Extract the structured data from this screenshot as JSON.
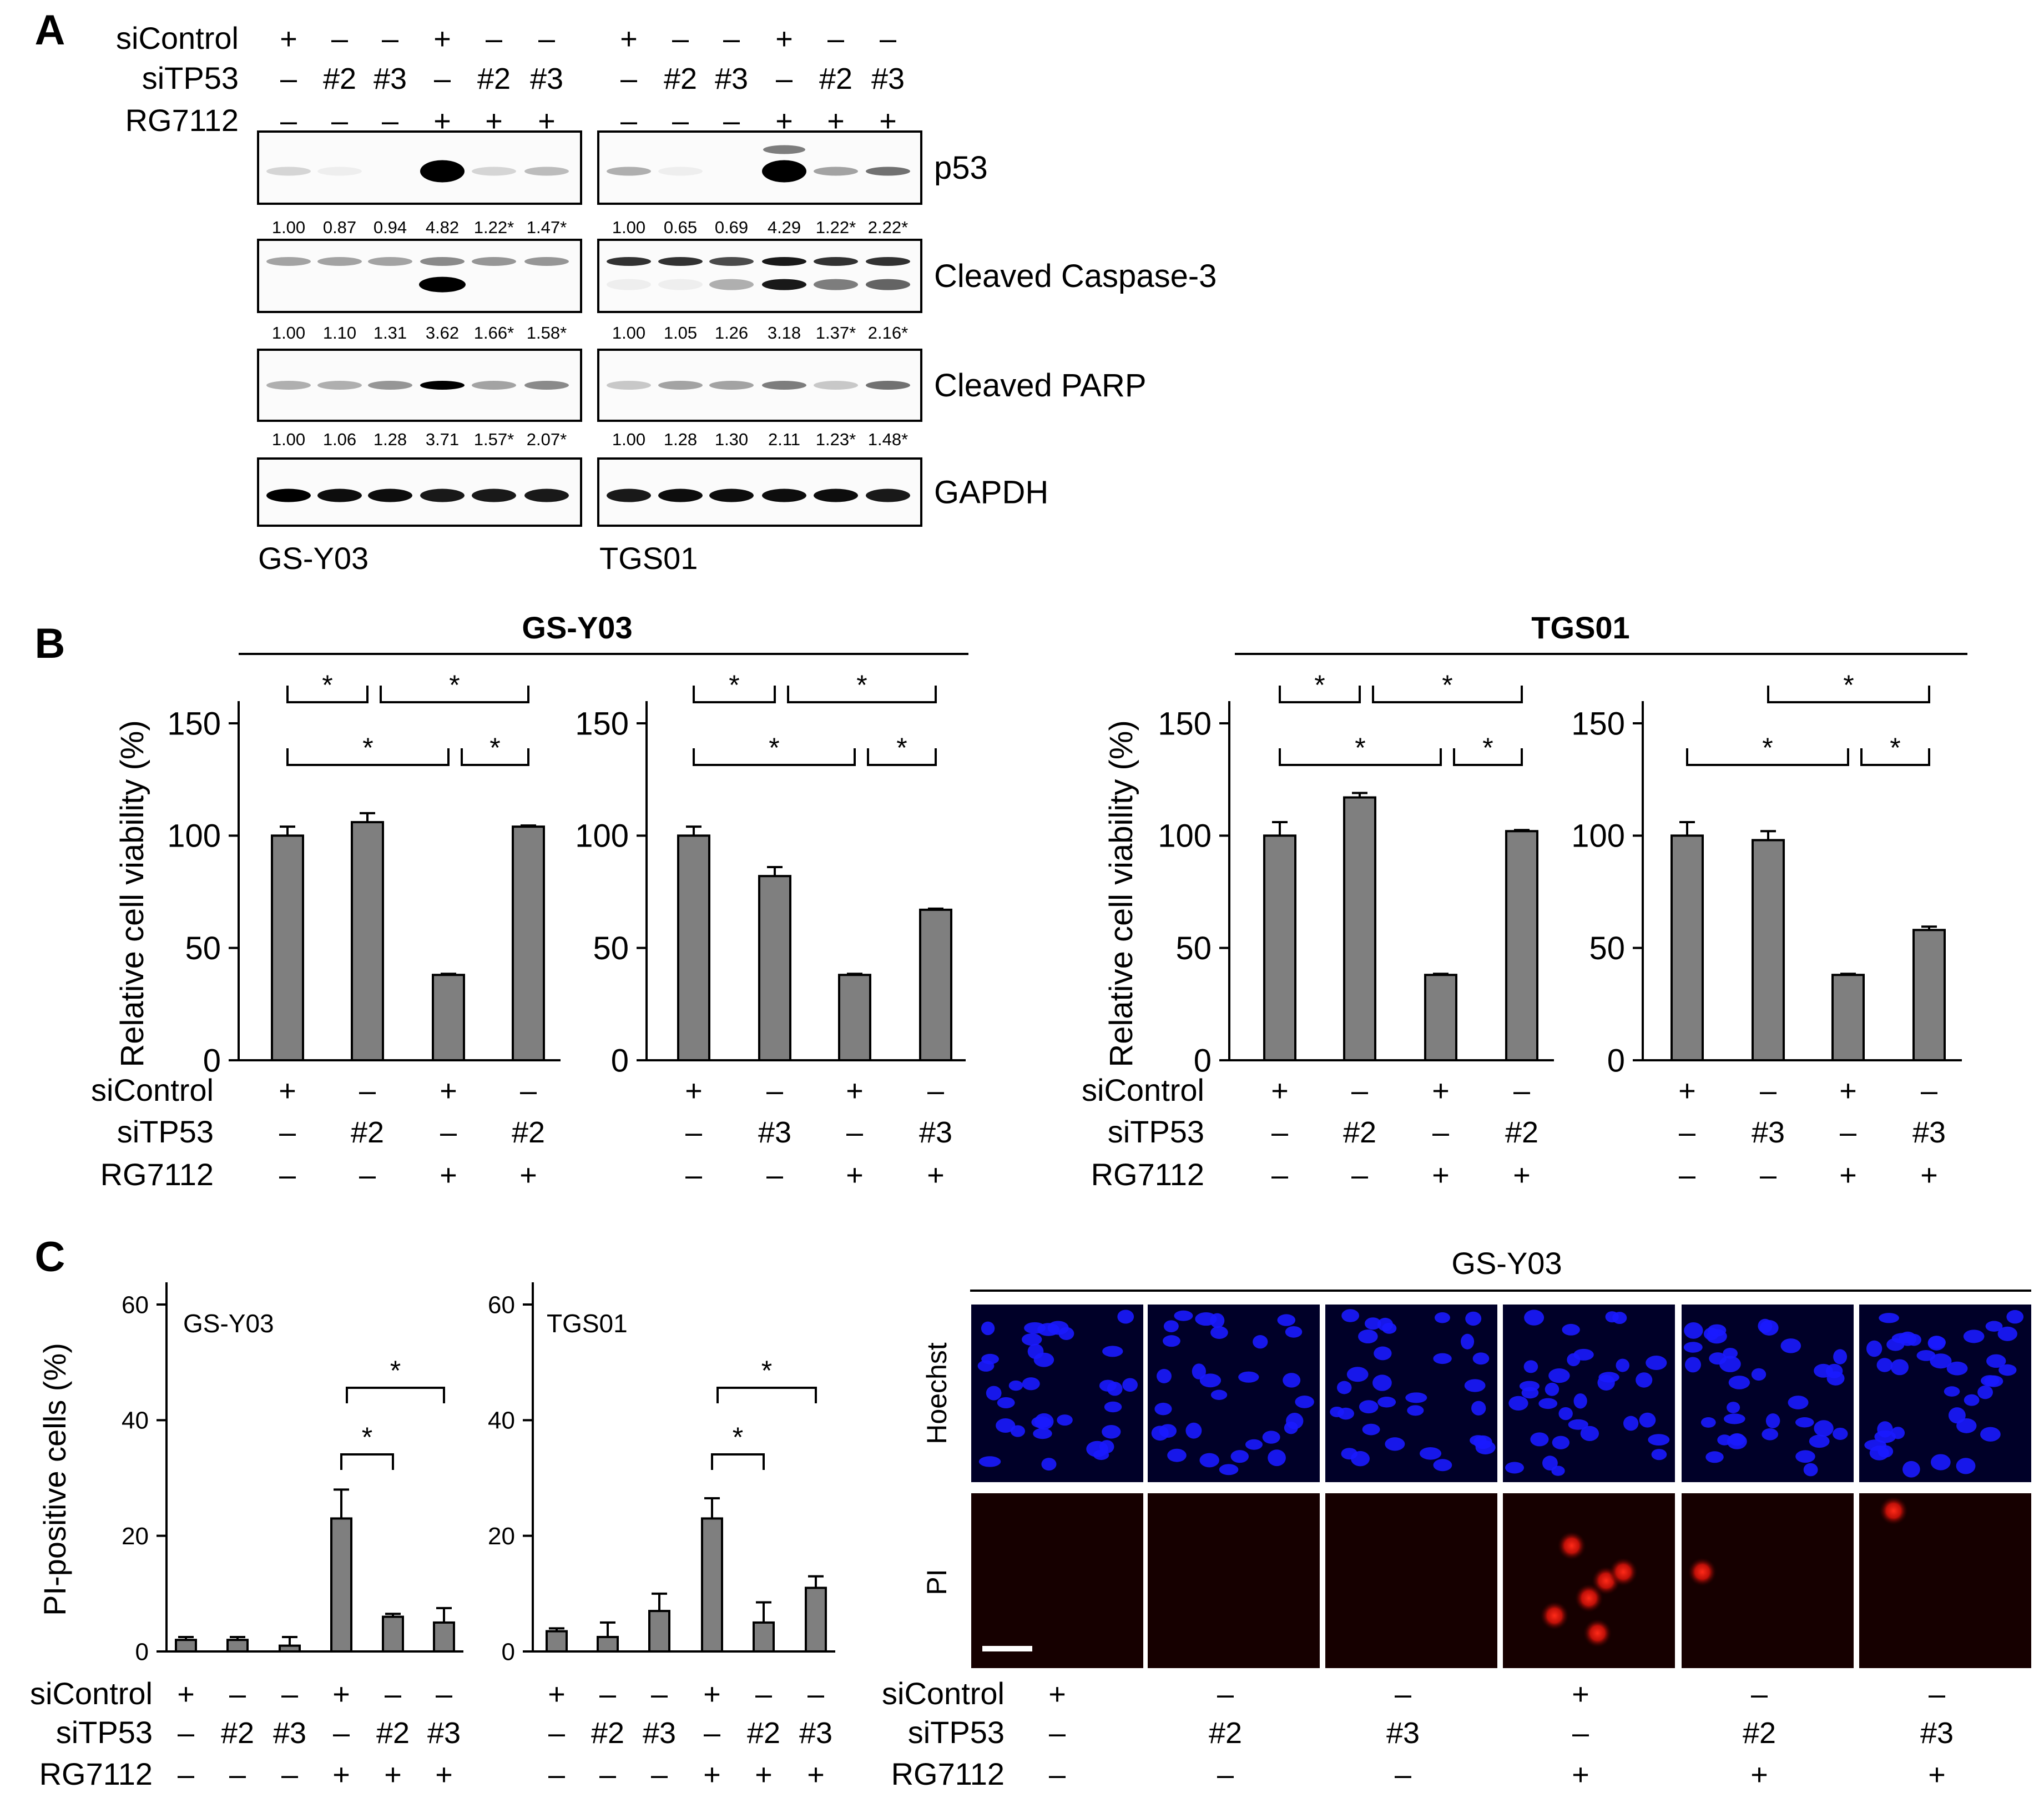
{
  "panel_labels": [
    "A",
    "B",
    "C"
  ],
  "panelA": {
    "rows": [
      {
        "label": "siControl",
        "values": [
          "+",
          "–",
          "–",
          "+",
          "–",
          "–"
        ]
      },
      {
        "label": "siTP53",
        "values": [
          "–",
          "#2",
          "#3",
          "–",
          "#2",
          "#3"
        ]
      },
      {
        "label": "RG7112",
        "values": [
          "–",
          "–",
          "–",
          "+",
          "+",
          "+"
        ]
      }
    ],
    "blots": [
      {
        "label": "p53",
        "quant_left": [
          "1.00",
          "0.87",
          "0.94",
          "4.82",
          "1.22*",
          "1.47*"
        ],
        "quant_right": [
          "1.00",
          "0.65",
          "0.69",
          "4.29",
          "1.22*",
          "2.22*"
        ]
      },
      {
        "label": "Cleaved Caspase-3",
        "quant_left": [
          "1.00",
          "1.10",
          "1.31",
          "3.62",
          "1.66*",
          "1.58*"
        ],
        "quant_right": [
          "1.00",
          "1.05",
          "1.26",
          "3.18",
          "1.37*",
          "2.16*"
        ]
      },
      {
        "label": "Cleaved PARP",
        "quant_left": [
          "1.00",
          "1.06",
          "1.28",
          "3.71",
          "1.57*",
          "2.07*"
        ],
        "quant_right": [
          "1.00",
          "1.28",
          "1.30",
          "2.11",
          "1.23*",
          "1.48*"
        ]
      },
      {
        "label": "GAPDH",
        "quant_left": [],
        "quant_right": []
      }
    ],
    "cell_lines": [
      "GS-Y03",
      "TGS01"
    ]
  },
  "panelB": {
    "groups": [
      "GS-Y03",
      "TGS01"
    ],
    "ylabel": "Relative cell viability (%)",
    "yticks": [
      "0",
      "50",
      "100",
      "150"
    ],
    "row_labels": [
      "siControl",
      "siTP53",
      "RG7112"
    ],
    "sig": "*"
  },
  "panelC": {
    "ylabel": "PI-positive cells (%)",
    "yticks": [
      "0",
      "20",
      "40",
      "60"
    ],
    "row_labels": [
      "siControl",
      "siTP53",
      "RG7112"
    ],
    "sig": "*",
    "micro_title": "GS-Y03",
    "stain_labels": [
      "Hoechst",
      "PI"
    ]
  },
  "chart_data": [
    {
      "type": "bar",
      "title": "GS-Y03",
      "ylabel": "Relative cell viability (%)",
      "ylim": [
        0,
        170
      ],
      "siControl": [
        "+",
        "–",
        "+",
        "–"
      ],
      "siTP53": [
        "–",
        "#2",
        "–",
        "#2"
      ],
      "RG7112": [
        "–",
        "–",
        "+",
        "+"
      ],
      "values": [
        100,
        106,
        38,
        104
      ],
      "errors": [
        4,
        4,
        0.5,
        0.5
      ]
    },
    {
      "type": "bar",
      "ylabel": "",
      "ylim": [
        0,
        170
      ],
      "siControl": [
        "+",
        "–",
        "+",
        "–"
      ],
      "siTP53": [
        "–",
        "#3",
        "–",
        "#3"
      ],
      "RG7112": [
        "–",
        "–",
        "+",
        "+"
      ],
      "values": [
        100,
        82,
        38,
        67
      ],
      "errors": [
        4,
        4,
        0.5,
        0.5
      ]
    },
    {
      "type": "bar",
      "title": "TGS01",
      "ylabel": "Relative cell viability (%)",
      "ylim": [
        0,
        170
      ],
      "siControl": [
        "+",
        "–",
        "+",
        "–"
      ],
      "siTP53": [
        "–",
        "#2",
        "–",
        "#2"
      ],
      "RG7112": [
        "–",
        "–",
        "+",
        "+"
      ],
      "values": [
        100,
        117,
        38,
        102
      ],
      "errors": [
        6,
        2,
        0.5,
        0.5
      ]
    },
    {
      "type": "bar",
      "ylabel": "",
      "ylim": [
        0,
        170
      ],
      "siControl": [
        "+",
        "–",
        "+",
        "–"
      ],
      "siTP53": [
        "–",
        "#3",
        "–",
        "#3"
      ],
      "RG7112": [
        "–",
        "–",
        "+",
        "+"
      ],
      "values": [
        100,
        98,
        38,
        58
      ],
      "errors": [
        6,
        4,
        0.5,
        1.5
      ]
    },
    {
      "type": "bar",
      "title": "GS-Y03",
      "ylabel": "PI-positive cells (%)",
      "ylim": [
        0,
        60
      ],
      "siControl": [
        "+",
        "–",
        "–",
        "+",
        "–",
        "–"
      ],
      "siTP53": [
        "–",
        "#2",
        "#3",
        "–",
        "#2",
        "#3"
      ],
      "RG7112": [
        "–",
        "–",
        "–",
        "+",
        "+",
        "+"
      ],
      "values": [
        2,
        2,
        1,
        23,
        6,
        5
      ],
      "errors": [
        0.5,
        0.5,
        1.5,
        5,
        0.5,
        2.5
      ]
    },
    {
      "type": "bar",
      "title": "TGS01",
      "ylabel": "",
      "ylim": [
        0,
        60
      ],
      "siControl": [
        "+",
        "–",
        "–",
        "+",
        "–",
        "–"
      ],
      "siTP53": [
        "–",
        "#2",
        "#3",
        "–",
        "#2",
        "#3"
      ],
      "RG7112": [
        "–",
        "–",
        "–",
        "+",
        "+",
        "+"
      ],
      "values": [
        3.5,
        2.5,
        7,
        23,
        5,
        11
      ],
      "errors": [
        0.5,
        2.5,
        3,
        3.5,
        3.5,
        2
      ]
    }
  ]
}
